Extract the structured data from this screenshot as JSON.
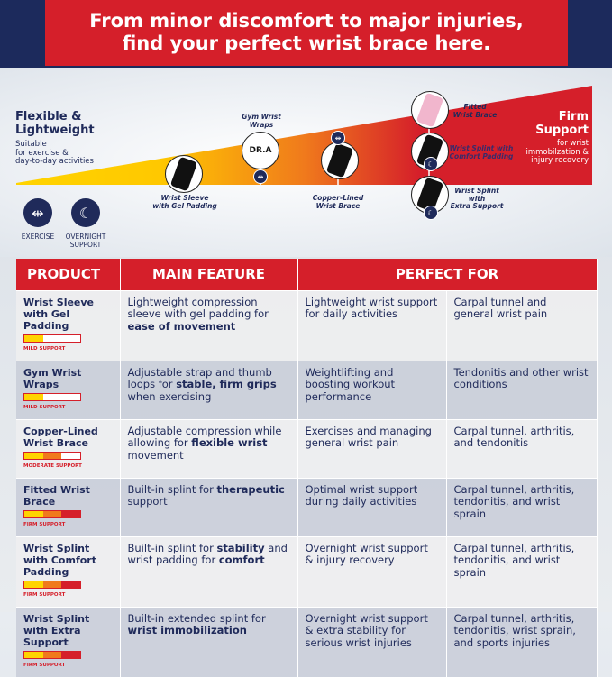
{
  "banner": {
    "line1": "From minor discomfort to major injuries,",
    "line2": "find your perfect wrist brace here."
  },
  "scale": {
    "left_title1": "Flexible &",
    "left_title2": "Lightweight",
    "left_sub1": "Suitable",
    "left_sub2": "for exercise &",
    "left_sub3": "day-to-day activities",
    "right_title1": "Firm",
    "right_title2": "Support",
    "right_sub1": "for wrist",
    "right_sub2": "immobilzation &",
    "right_sub3": "injury recovery",
    "colors": {
      "start": "#ffd400",
      "mid": "#f28c1e",
      "end": "#d51f2a"
    }
  },
  "legend": [
    {
      "icon": "dumbbell-icon",
      "label": "EXERCISE"
    },
    {
      "icon": "moon-icon",
      "label1": "OVERNIGHT",
      "label2": "SUPPORT"
    }
  ],
  "products_on_scale": [
    {
      "l1": "Wrist Sleeve",
      "l2": "with Gel Padding"
    },
    {
      "l1": "Gym Wrist",
      "l2": "Wraps"
    },
    {
      "l1": "Copper-Lined",
      "l2": "Wrist Brace"
    },
    {
      "l1": "Fitted",
      "l2": "Wrist Brace"
    },
    {
      "l1": "Wrist Splint with",
      "l2": "Comfort Padding"
    },
    {
      "l1": "Wrist Splint with",
      "l2": "Extra Support"
    }
  ],
  "logo_text": "DR.A",
  "table": {
    "headers": [
      "PRODUCT",
      "MAIN FEATURE",
      "PERFECT FOR"
    ],
    "rows": [
      {
        "product": "Wrist Sleeve with Gel Padding",
        "level": "MILD SUPPORT",
        "bars": 1,
        "feat_pre": "Lightweight compression sleeve with gel padding for ",
        "feat_bold": "ease of movement",
        "feat_post": "",
        "for1": "Lightweight wrist support for daily activities",
        "for2": "Carpal tunnel and general wrist pain"
      },
      {
        "product": "Gym Wrist Wraps",
        "level": "MILD SUPPORT",
        "bars": 1,
        "feat_pre": "Adjustable strap and thumb loops for ",
        "feat_bold": "stable, firm grips",
        "feat_post": " when exercising",
        "for1": "Weightlifting and boosting workout performance",
        "for2": "Tendonitis and other wrist conditions"
      },
      {
        "product": "Copper-Lined Wrist Brace",
        "level": "MODERATE SUPPORT",
        "bars": 2,
        "feat_pre": "Adjustable compression while allowing for ",
        "feat_bold": "flexible wrist",
        "feat_post": " movement",
        "for1": "Exercises and managing general wrist pain",
        "for2": "Carpal tunnel, arthritis, and tendonitis"
      },
      {
        "product": "Fitted Wrist Brace",
        "level": "FIRM SUPPORT",
        "bars": 3,
        "feat_pre": "Built-in splint for ",
        "feat_bold": "therapeutic",
        "feat_post": " support",
        "for1": "Optimal wrist support during daily activities",
        "for2": "Carpal tunnel, arthritis, tendonitis, and wrist sprain"
      },
      {
        "product": "Wrist Splint with Comfort Padding",
        "level": "FIRM SUPPORT",
        "bars": 3,
        "feat_pre": "Built-in splint for ",
        "feat_bold": "stability",
        "feat_post": " and wrist padding for ",
        "feat_bold2": "comfort",
        "for1": "Overnight wrist support & injury recovery",
        "for2": "Carpal tunnel, arthritis, tendonitis, and wrist sprain"
      },
      {
        "product": "Wrist Splint with Extra Support",
        "level": "FIRM SUPPORT",
        "bars": 3,
        "feat_pre": "Built-in extended splint for ",
        "feat_bold": "wrist immobilization",
        "feat_post": "",
        "for1": "Overnight wrist support & extra stability for serious wrist injuries",
        "for2": "Carpal tunnel, arthritis, tendonitis, wrist sprain, and sports injuries"
      }
    ]
  }
}
